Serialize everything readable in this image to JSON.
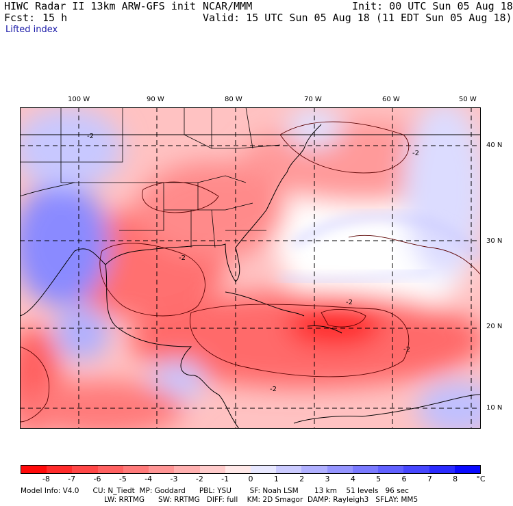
{
  "header": {
    "title": "HIWC Radar II 13km ARW-GFS init",
    "org": "NCAR/MMM",
    "init": "Init: 00 UTC Sun 05 Aug 18",
    "fcst_label": "Fcst:",
    "fcst_value": "15 h",
    "valid": "Valid: 15 UTC Sun 05 Aug 18 (11 EDT Sun 05 Aug 18)",
    "field": "Lifted index"
  },
  "lon_labels": [
    "100 W",
    "90 W",
    "80 W",
    "70 W",
    "60 W",
    "50 W"
  ],
  "lat_labels": [
    "40 N",
    "30 N",
    "20 N",
    "10 N"
  ],
  "contour_labels": [
    "-2",
    "-2",
    "-2",
    "-2",
    "-2",
    "-2"
  ],
  "colorbar": {
    "unit": "°C",
    "labels": [
      "-8",
      "-7",
      "-6",
      "-5",
      "-4",
      "-3",
      "-2",
      "-1",
      "0",
      "1",
      "2",
      "3",
      "4",
      "5",
      "6",
      "7",
      "8"
    ],
    "colors": [
      "#ff0a0a",
      "#ff2b2b",
      "#ff4747",
      "#ff6161",
      "#ff7a7a",
      "#ff9595",
      "#ffb0b0",
      "#ffcbcb",
      "#ffe8e8",
      "#e8e8ff",
      "#cbcbff",
      "#b0b0ff",
      "#9595ff",
      "#7a7aff",
      "#6161ff",
      "#4747ff",
      "#2b2bff",
      "#0a0aff"
    ]
  },
  "model_info": {
    "line1": "Model Info: V4.0      CU: N_Tiedt  MP: Goddard      PBL: YSU        SF: Noah LSM       13 km    51 levels   96 sec",
    "line2": "LW: RRTMG      SW: RRTMG   DIFF: full    KM: 2D Smagor  DAMP: Rayleigh3   SFLAY: MM5"
  }
}
